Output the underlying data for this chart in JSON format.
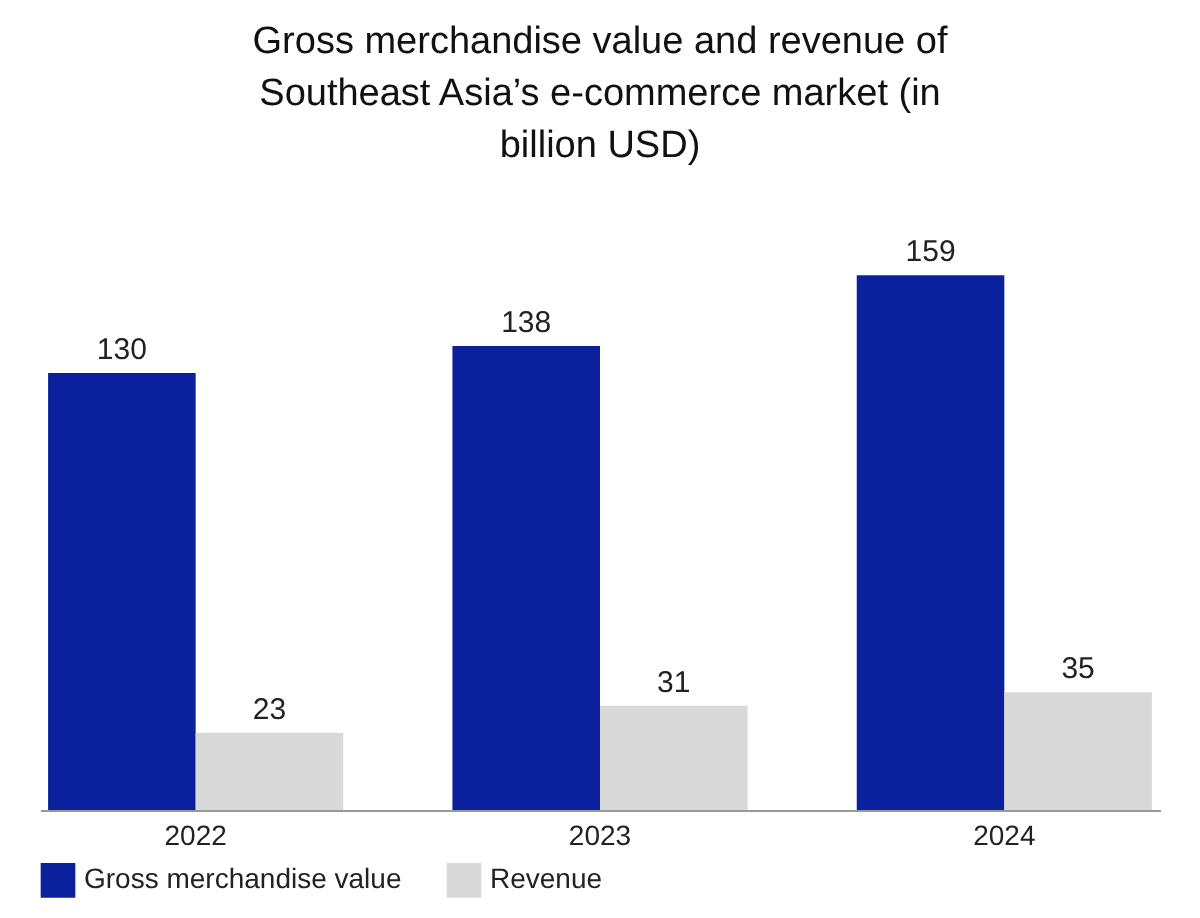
{
  "chart_data": {
    "type": "bar",
    "title": "Gross merchandise value and revenue of Southeast Asia’s e-commerce market (in billion USD)",
    "categories": [
      "2022",
      "2023",
      "2024"
    ],
    "series": [
      {
        "name": "Gross merchandise value",
        "color": "#0a209c",
        "values": [
          130,
          138,
          159
        ]
      },
      {
        "name": "Revenue",
        "color": "#d9d9d9",
        "values": [
          23,
          31,
          35
        ]
      }
    ],
    "data_labels": true,
    "legend": "bottom"
  }
}
